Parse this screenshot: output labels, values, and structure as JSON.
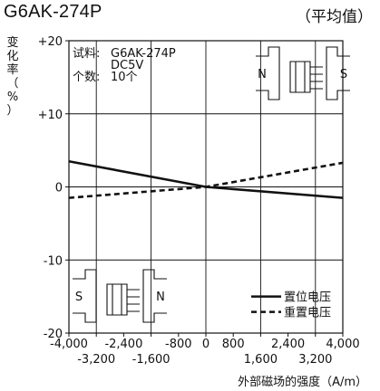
{
  "header": {
    "model": "G6AK-274P",
    "average": "（平均值）"
  },
  "chart_data": {
    "type": "line",
    "title": "G6AK-274P",
    "subtitle": "（平均值）",
    "ylabel_chars": [
      "变",
      "化",
      "率",
      "（",
      "%",
      "）"
    ],
    "xlabel": "外部磁场的强度（A/m）",
    "xlim": [
      -4000,
      4000
    ],
    "ylim": [
      -20,
      20
    ],
    "y_ticks": [
      {
        "value": 20,
        "label": "+20"
      },
      {
        "value": 10,
        "label": "+10"
      },
      {
        "value": 0,
        "label": "0"
      },
      {
        "value": -10,
        "label": "-10"
      },
      {
        "value": -20,
        "label": "-20"
      }
    ],
    "x_major_ticks": [
      -4000,
      -2400,
      -800,
      0,
      800,
      2400,
      4000
    ],
    "x_major_labels": [
      "-4,000",
      "-2,400",
      "-800",
      "0",
      "800",
      "2,400",
      "4,000"
    ],
    "x_minor_ticks": [
      -3200,
      -1600,
      1600,
      3200
    ],
    "x_minor_labels": [
      "-3,200",
      "-1,600",
      "1,600",
      "3,200"
    ],
    "x_grid": [
      -3200,
      -1600,
      0,
      1600,
      3200
    ],
    "y_grid": [
      10,
      0,
      -10
    ],
    "sample_info": {
      "line1_label": "试料:",
      "line1_value": "G6AK-274P",
      "line2_value": "DC5V",
      "line3_label": "个数:",
      "line3_value": "10个"
    },
    "series": [
      {
        "name": "置位电压",
        "style": "solid",
        "color": "#111111",
        "x": [
          -4000,
          0,
          4000
        ],
        "y": [
          3.5,
          0,
          -1.5
        ]
      },
      {
        "name": "重置电压",
        "style": "dashed",
        "color": "#111111",
        "x": [
          -4000,
          0,
          4000
        ],
        "y": [
          -1.5,
          0,
          3.3
        ]
      }
    ],
    "legend_position": "bottom-right",
    "magnet_diagrams": [
      {
        "position": "top-right",
        "left_pole": "N",
        "right_pole": "S"
      },
      {
        "position": "bottom-left",
        "left_pole": "S",
        "right_pole": "N"
      }
    ]
  }
}
